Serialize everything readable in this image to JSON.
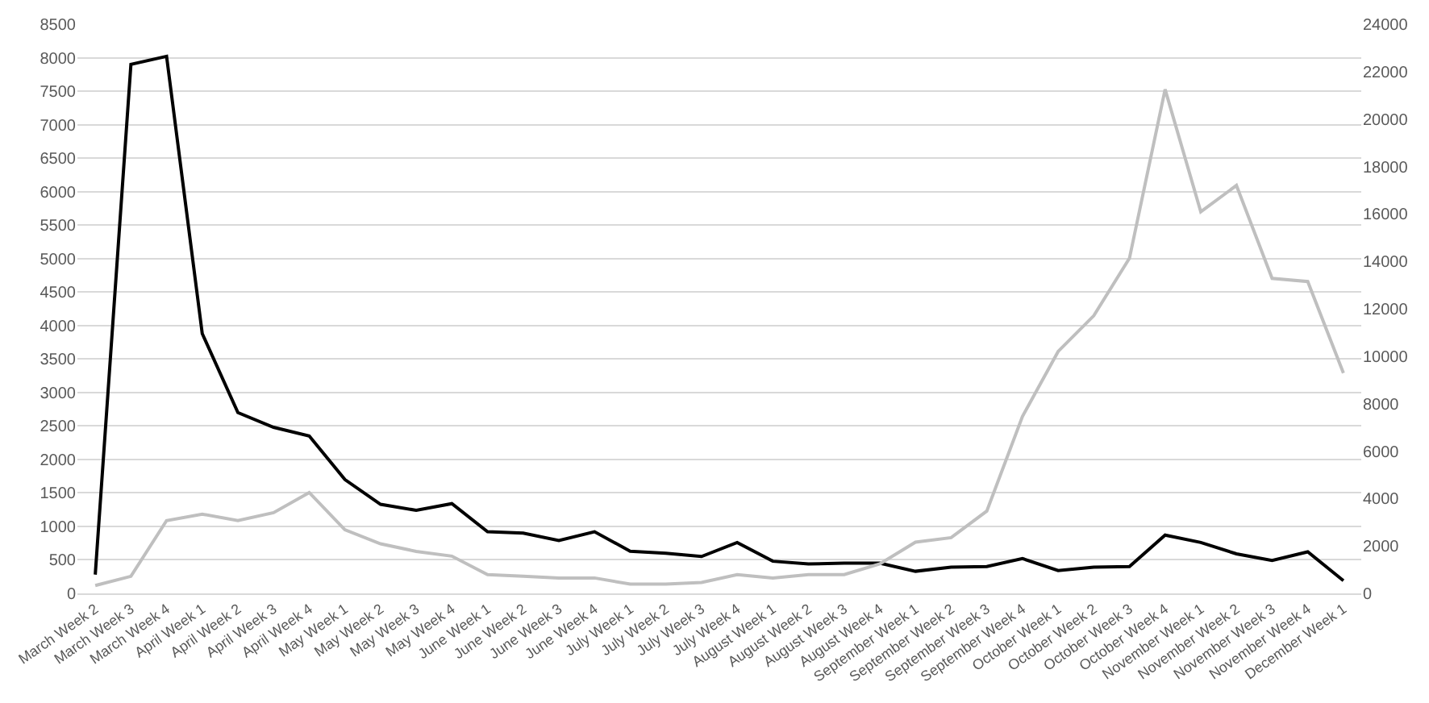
{
  "chart_data": {
    "type": "line",
    "categories": [
      "March Week 2",
      "March Week 3",
      "March Week 4",
      "April Week 1",
      "April Week 2",
      "April Week 3",
      "April Week 4",
      "May Week 1",
      "May Week 2",
      "May Week 3",
      "May Week 4",
      "June Week 1",
      "June Week 2",
      "June Week 3",
      "June Week 4",
      "July Week 1",
      "July Week 2",
      "July Week 3",
      "July Week 4",
      "August Week 1",
      "August Week 2",
      "August Week 3",
      "August Week 4",
      "September Week 1",
      "September Week 2",
      "September Week 3",
      "September Week 4",
      "October Week 1",
      "October Week 2",
      "October Week 3",
      "October Week 4",
      "November Week 1",
      "November Week 2",
      "November Week 3",
      "November Week 4",
      "December Week 1"
    ],
    "series": [
      {
        "color": "#000000",
        "values": [
          280,
          7900,
          8020,
          3880,
          2700,
          2480,
          2350,
          1700,
          1330,
          1240,
          1340,
          920,
          900,
          790,
          920,
          630,
          600,
          550,
          760,
          480,
          440,
          450,
          450,
          330,
          390,
          400,
          520,
          340,
          390,
          400,
          870,
          760,
          590,
          490,
          620,
          190
        ]
      },
      {
        "color": "#bfbfbf",
        "axis": "y2",
        "values": [
          330,
          720,
          3070,
          3340,
          3070,
          3400,
          4250,
          2680,
          2090,
          1770,
          1570,
          790,
          720,
          650,
          650,
          390,
          390,
          460,
          790,
          650,
          790,
          790,
          1240,
          2160,
          2350,
          3470,
          7460,
          10200,
          11710,
          14130,
          21250,
          16090,
          17200,
          13280,
          13150,
          9290
        ]
      }
    ],
    "ylim": [
      0,
      8500
    ],
    "yticks": [
      0,
      500,
      1000,
      1500,
      2000,
      2500,
      3000,
      3500,
      4000,
      4500,
      5000,
      5500,
      6000,
      6500,
      7000,
      7500,
      8000,
      8500
    ],
    "y2lim": [
      0,
      24000
    ],
    "y2ticks": [
      0,
      2000,
      4000,
      6000,
      8000,
      10000,
      12000,
      14000,
      16000,
      18000,
      20000,
      22000,
      24000
    ],
    "grid": "y",
    "marker": "none",
    "line_style": "solid"
  }
}
